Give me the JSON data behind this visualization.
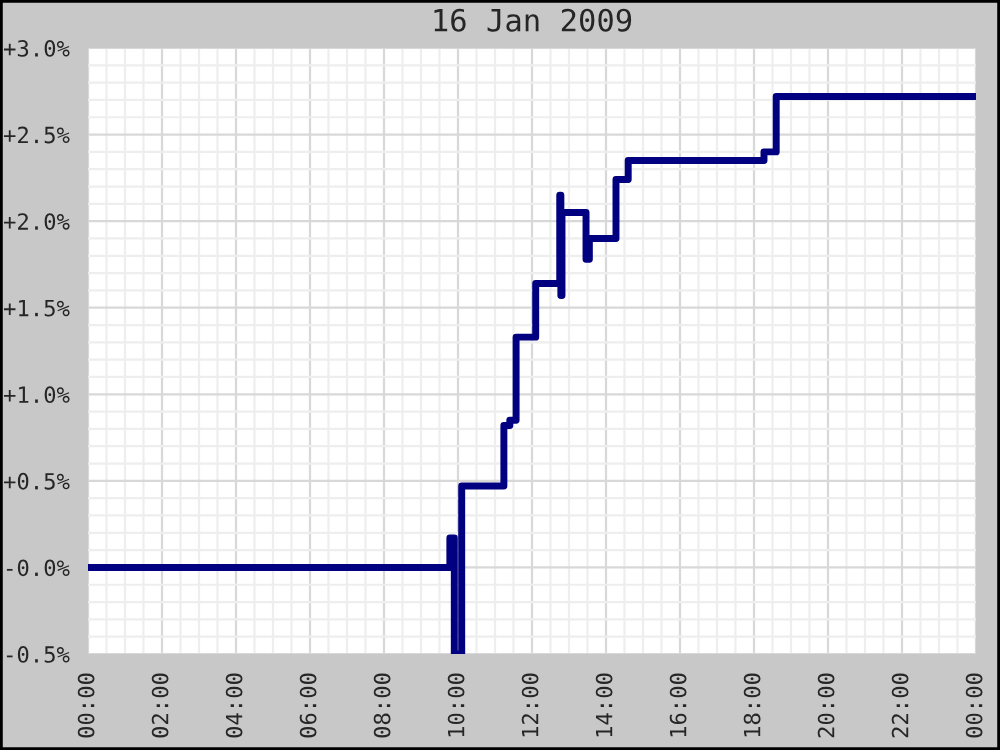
{
  "chart_data": {
    "type": "step",
    "title": "16 Jan 2009",
    "series": [
      {
        "color": "#000080",
        "x": [
          0,
          9.78,
          9.9,
          10.1,
          11.24,
          11.4,
          11.57,
          12.1,
          12.75,
          12.78,
          12.81,
          13.46,
          13.55,
          14.27,
          14.6,
          18.27,
          18.6,
          24
        ],
        "values": [
          0.0,
          0.17,
          -0.5,
          0.47,
          0.82,
          0.85,
          1.33,
          1.64,
          2.15,
          1.57,
          2.05,
          1.78,
          1.9,
          2.24,
          2.35,
          2.4,
          2.72,
          2.72
        ]
      }
    ],
    "xlim": [
      0,
      24
    ],
    "xticks": [
      {
        "value": 0,
        "label": "00:00"
      },
      {
        "value": 2,
        "label": "02:00"
      },
      {
        "value": 4,
        "label": "04:00"
      },
      {
        "value": 6,
        "label": "06:00"
      },
      {
        "value": 8,
        "label": "08:00"
      },
      {
        "value": 10,
        "label": "10:00"
      },
      {
        "value": 12,
        "label": "12:00"
      },
      {
        "value": 14,
        "label": "14:00"
      },
      {
        "value": 16,
        "label": "16:00"
      },
      {
        "value": 18,
        "label": "18:00"
      },
      {
        "value": 20,
        "label": "20:00"
      },
      {
        "value": 22,
        "label": "22:00"
      },
      {
        "value": 24,
        "label": "00:00"
      }
    ],
    "ylim": [
      -0.5,
      3.0
    ],
    "yticks": [
      {
        "value": -0.5,
        "label": "-0.5%"
      },
      {
        "value": 0,
        "label": "-0.0%"
      },
      {
        "value": 0.5,
        "label": "+0.5%"
      },
      {
        "value": 1.0,
        "label": "+1.0%"
      },
      {
        "value": 1.5,
        "label": "+1.5%"
      },
      {
        "value": 2.0,
        "label": "+2.0%"
      },
      {
        "value": 2.5,
        "label": "+2.5%"
      },
      {
        "value": 3.0,
        "label": "+3.0%"
      }
    ],
    "grid": true,
    "line_style": "solid",
    "marker": "none"
  }
}
